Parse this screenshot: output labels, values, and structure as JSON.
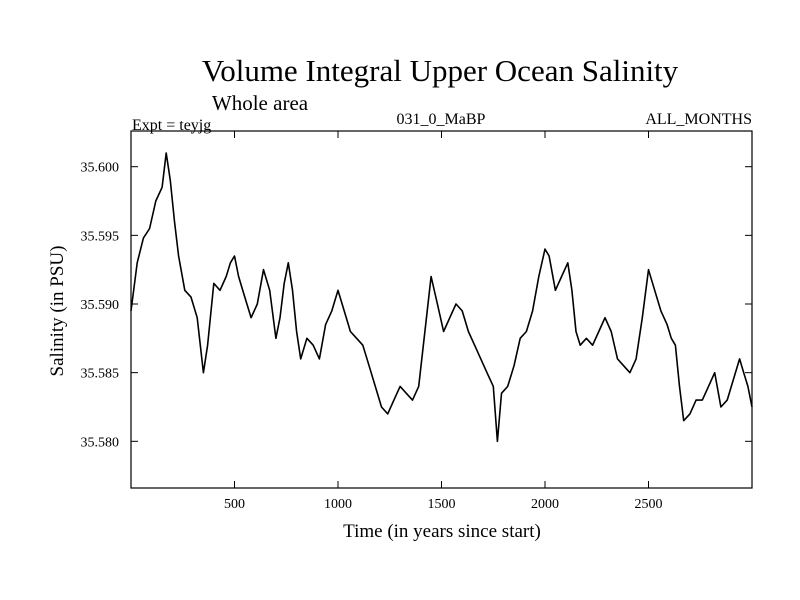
{
  "chart_data": {
    "type": "line",
    "title": "Volume Integral Upper Ocean Salinity",
    "subtitle": "Whole area",
    "experiment": "Expt = teyjg",
    "run_id": "031_0_MaBP",
    "months": "ALL_MONTHS",
    "xlabel": "Time (in years since start)",
    "ylabel": "Salinity (in PSU)",
    "xlim": [
      0,
      3000
    ],
    "ylim": [
      35.5766,
      35.6026
    ],
    "xticks": [
      500,
      1000,
      1500,
      2000,
      2500
    ],
    "xtick_labels": [
      "500",
      "1000",
      "1500",
      "2000",
      "2500"
    ],
    "yticks": [
      35.58,
      35.585,
      35.59,
      35.595,
      35.6
    ],
    "ytick_labels": [
      "35.580",
      "35.585",
      "35.590",
      "35.595",
      "35.600"
    ],
    "grid": false,
    "series": [
      {
        "name": "Salinity",
        "color": "#000000",
        "x": [
          0,
          30,
          60,
          90,
          120,
          150,
          170,
          190,
          210,
          230,
          260,
          290,
          320,
          350,
          370,
          400,
          430,
          460,
          480,
          500,
          520,
          550,
          580,
          610,
          640,
          670,
          700,
          720,
          740,
          760,
          780,
          800,
          820,
          850,
          880,
          910,
          940,
          970,
          1000,
          1030,
          1060,
          1090,
          1120,
          1150,
          1180,
          1210,
          1240,
          1270,
          1300,
          1330,
          1360,
          1390,
          1420,
          1450,
          1480,
          1510,
          1540,
          1570,
          1600,
          1630,
          1660,
          1690,
          1720,
          1750,
          1770,
          1790,
          1820,
          1850,
          1880,
          1910,
          1940,
          1970,
          2000,
          2020,
          2050,
          2080,
          2110,
          2130,
          2150,
          2170,
          2200,
          2230,
          2260,
          2290,
          2320,
          2350,
          2380,
          2410,
          2440,
          2470,
          2500,
          2530,
          2560,
          2590,
          2610,
          2630,
          2650,
          2670,
          2700,
          2730,
          2760,
          2790,
          2820,
          2850,
          2880,
          2910,
          2940,
          2960,
          2980,
          3000
        ],
        "values": [
          35.5895,
          35.593,
          35.5948,
          35.5955,
          35.5975,
          35.5985,
          35.601,
          35.599,
          35.596,
          35.5935,
          35.591,
          35.5905,
          35.589,
          35.585,
          35.587,
          35.5915,
          35.591,
          35.592,
          35.593,
          35.5935,
          35.592,
          35.5905,
          35.589,
          35.59,
          35.5925,
          35.591,
          35.5875,
          35.589,
          35.5915,
          35.593,
          35.591,
          35.588,
          35.586,
          35.5875,
          35.587,
          35.586,
          35.5885,
          35.5895,
          35.591,
          35.5895,
          35.588,
          35.5875,
          35.587,
          35.5855,
          35.584,
          35.5825,
          35.582,
          35.583,
          35.584,
          35.5835,
          35.583,
          35.584,
          35.588,
          35.592,
          35.59,
          35.588,
          35.589,
          35.59,
          35.5895,
          35.588,
          35.587,
          35.586,
          35.585,
          35.584,
          35.58,
          35.5835,
          35.584,
          35.5855,
          35.5875,
          35.588,
          35.5895,
          35.592,
          35.594,
          35.5935,
          35.591,
          35.592,
          35.593,
          35.591,
          35.588,
          35.587,
          35.5875,
          35.587,
          35.588,
          35.589,
          35.588,
          35.586,
          35.5855,
          35.585,
          35.586,
          35.589,
          35.5925,
          35.591,
          35.5895,
          35.5885,
          35.5875,
          35.587,
          35.584,
          35.5815,
          35.582,
          35.583,
          35.583,
          35.584,
          35.585,
          35.5825,
          35.583,
          35.5845,
          35.586,
          35.585,
          35.584,
          35.5825
        ]
      }
    ]
  }
}
